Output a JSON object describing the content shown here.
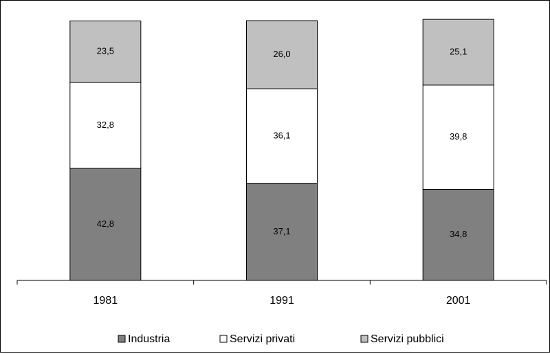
{
  "chart_data": {
    "type": "stacked_bar",
    "categories": [
      "1981",
      "1991",
      "2001"
    ],
    "ylim": [
      0,
      100
    ],
    "series": [
      {
        "name": "Industria",
        "color": "#808080",
        "values": [
          42.8,
          37.1,
          34.8
        ],
        "value_labels": [
          "42,8",
          "37,1",
          "34,8"
        ]
      },
      {
        "name": "Servizi privati",
        "color": "#ffffff",
        "values": [
          32.8,
          36.1,
          39.8
        ],
        "value_labels": [
          "32,8",
          "36,1",
          "39,8"
        ]
      },
      {
        "name": "Servizi pubblici",
        "color": "#c0c0c0",
        "values": [
          23.5,
          26.0,
          25.1
        ],
        "value_labels": [
          "23,5",
          "26,0",
          "25,1"
        ]
      }
    ]
  }
}
